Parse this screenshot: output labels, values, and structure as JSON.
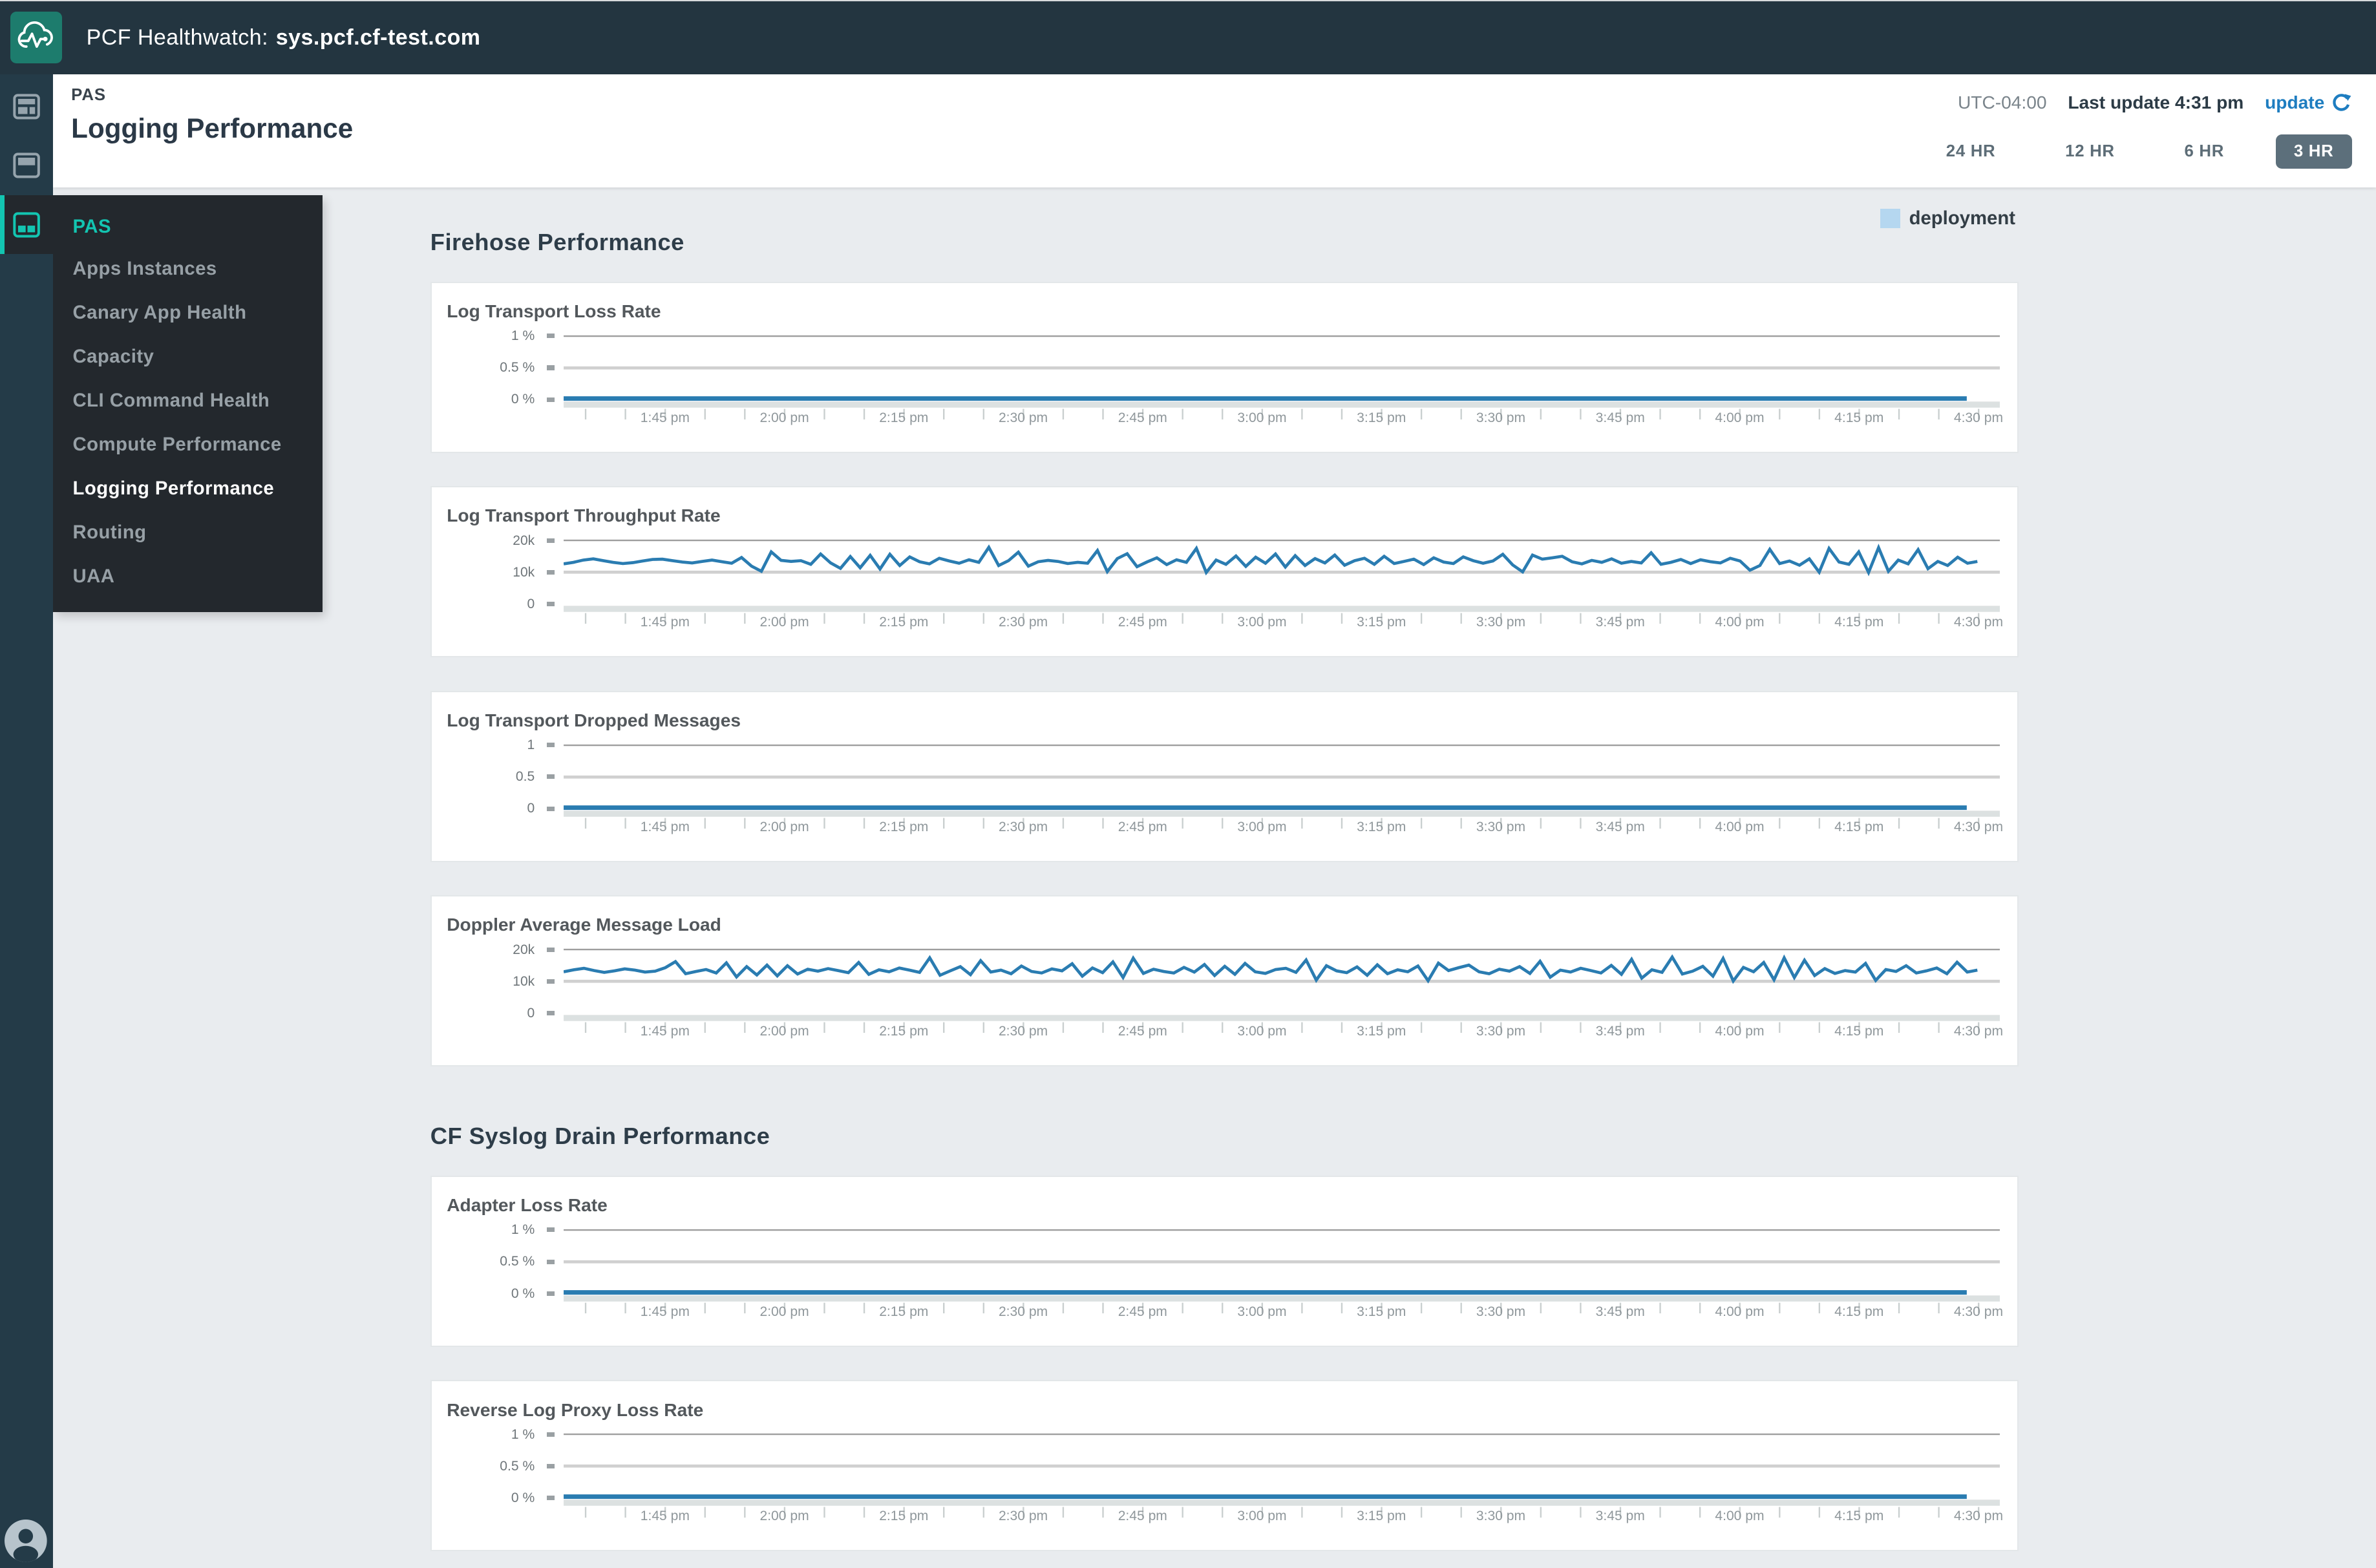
{
  "header": {
    "app_title_prefix": "PCF Healthwatch:",
    "app_domain": "sys.pcf.cf-test.com"
  },
  "subheader": {
    "breadcrumb": "PAS",
    "title": "Logging Performance",
    "timezone": "UTC-04:00",
    "last_update": "Last update 4:31 pm",
    "update_label": "update",
    "ranges": [
      {
        "label": "24 HR",
        "active": false
      },
      {
        "label": "12 HR",
        "active": false
      },
      {
        "label": "6 HR",
        "active": false
      },
      {
        "label": "3 HR",
        "active": true
      }
    ]
  },
  "rail": {
    "icons": [
      {
        "name": "dashboard-overview-icon",
        "active": false
      },
      {
        "name": "panel-top-icon",
        "active": false
      },
      {
        "name": "panel-split-icon",
        "active": true
      }
    ]
  },
  "menu": {
    "items": [
      {
        "label": "PAS",
        "style": "section"
      },
      {
        "label": "Apps Instances",
        "style": "normal"
      },
      {
        "label": "Canary App Health",
        "style": "normal"
      },
      {
        "label": "Capacity",
        "style": "normal"
      },
      {
        "label": "CLI Command Health",
        "style": "normal"
      },
      {
        "label": "Compute Performance",
        "style": "normal"
      },
      {
        "label": "Logging Performance",
        "style": "active"
      },
      {
        "label": "Routing",
        "style": "normal"
      },
      {
        "label": "UAA",
        "style": "normal"
      }
    ]
  },
  "legend": {
    "label": "deployment",
    "color": "#b5d7f0"
  },
  "sections": [
    {
      "heading": "Firehose Performance"
    },
    {
      "heading": "CF Syslog Drain Performance"
    }
  ],
  "colors": {
    "line_blue": "#2a7cb1",
    "grid_top": "#9e9e9e",
    "grid_mid": "#d0d0d0",
    "baseline_band": "#dce1e1",
    "minor_tick": "#c9cfcf",
    "teal_accent": "#13c5b1",
    "header_bg": "#233540",
    "rail_bg": "#243b48",
    "menu_bg": "#23282d",
    "logo_bg": "#1d7c6d",
    "active_range_bg": "#5c6f7b",
    "update_blue": "#1e7dc0"
  },
  "chart_data": [
    {
      "type": "line",
      "title": "Log Transport Loss Rate",
      "section": "Firehose Performance",
      "legend": "deployment",
      "grid": true,
      "ylim": [
        0,
        1.25
      ],
      "y_unit": "%",
      "y_ticks": [
        {
          "label": "1 %",
          "value": 1
        },
        {
          "label": "0.5 %",
          "value": 0.5
        },
        {
          "label": "0 %",
          "value": 0
        }
      ],
      "x_labels": [
        "1:45 pm",
        "2:00 pm",
        "2:15 pm",
        "2:30 pm",
        "2:45 pm",
        "3:00 pm",
        "3:15 pm",
        "3:30 pm",
        "3:45 pm",
        "4:00 pm",
        "4:15 pm",
        "4:30 pm"
      ],
      "series": [
        {
          "name": "deployment",
          "constant": true,
          "values": [
            0,
            0
          ]
        }
      ]
    },
    {
      "type": "line",
      "title": "Log Transport Throughput Rate",
      "section": "Firehose Performance",
      "legend": "deployment",
      "grid": true,
      "ylim": [
        0,
        22000
      ],
      "y_unit": "k",
      "y_ticks": [
        {
          "label": "20k",
          "value": 20
        },
        {
          "label": "10k",
          "value": 10
        },
        {
          "label": "0",
          "value": 0
        }
      ],
      "x_labels": [
        "1:45 pm",
        "2:00 pm",
        "2:15 pm",
        "2:30 pm",
        "2:45 pm",
        "3:00 pm",
        "3:15 pm",
        "3:30 pm",
        "3:45 pm",
        "4:00 pm",
        "4:15 pm",
        "4:30 pm"
      ],
      "series": [
        {
          "name": "deployment",
          "constant": false,
          "values": [
            12.6,
            13.1,
            13.8,
            14.2,
            13.6,
            13.1,
            12.7,
            13.0,
            13.5,
            14.0,
            14.1,
            13.6,
            13.2,
            12.9,
            13.4,
            13.8,
            13.3,
            12.8,
            14.6,
            11.9,
            10.3,
            16.4,
            13.7,
            13.4,
            13.6,
            12.5,
            15.7,
            12.9,
            11.2,
            14.9,
            11.4,
            15.3,
            11.0,
            15.6,
            12.1,
            14.8,
            13.3,
            12.6,
            14.4,
            13.5,
            12.8,
            13.9,
            13.1,
            17.8,
            12.1,
            13.6,
            16.3,
            11.9,
            13.3,
            13.7,
            13.4,
            12.7,
            13.1,
            12.8,
            16.8,
            10.2,
            14.3,
            15.8,
            11.7,
            13.2,
            14.5,
            12.4,
            13.9,
            13.1,
            17.5,
            9.9,
            13.8,
            12.5,
            15.1,
            11.8,
            14.7,
            12.8,
            15.7,
            11.6,
            15.2,
            12.1,
            14.3,
            12.9,
            15.4,
            12.2,
            13.6,
            14.4,
            12.5,
            15.0,
            12.7,
            13.4,
            14.1,
            12.4,
            14.5,
            13.2,
            12.7,
            14.8,
            13.6,
            12.8,
            13.5,
            15.6,
            12.3,
            10.1,
            15.4,
            14.1,
            14.5,
            15.0,
            13.3,
            12.6,
            13.7,
            13.1,
            14.2,
            12.8,
            13.4,
            12.9,
            16.1,
            12.5,
            13.1,
            14.0,
            12.7,
            13.9,
            13.3,
            12.9,
            14.4,
            13.5,
            10.6,
            12.1,
            17.2,
            12.7,
            13.5,
            12.2,
            14.2,
            10.0,
            17.5,
            13.2,
            12.5,
            16.4,
            9.9,
            17.7,
            10.3,
            13.8,
            12.6,
            17.1,
            11.1,
            13.4,
            12.1,
            14.7,
            12.8,
            13.4
          ]
        }
      ]
    },
    {
      "type": "line",
      "title": "Log Transport Dropped Messages",
      "section": "Firehose Performance",
      "legend": "deployment",
      "grid": true,
      "ylim": [
        0,
        1.25
      ],
      "y_unit": "",
      "y_ticks": [
        {
          "label": "1",
          "value": 1
        },
        {
          "label": "0.5",
          "value": 0.5
        },
        {
          "label": "0",
          "value": 0
        }
      ],
      "x_labels": [
        "1:45 pm",
        "2:00 pm",
        "2:15 pm",
        "2:30 pm",
        "2:45 pm",
        "3:00 pm",
        "3:15 pm",
        "3:30 pm",
        "3:45 pm",
        "4:00 pm",
        "4:15 pm",
        "4:30 pm"
      ],
      "series": [
        {
          "name": "deployment",
          "constant": true,
          "values": [
            0,
            0
          ]
        }
      ]
    },
    {
      "type": "line",
      "title": "Doppler Average Message Load",
      "section": "Firehose Performance",
      "legend": "deployment",
      "grid": true,
      "ylim": [
        0,
        22000
      ],
      "y_unit": "k",
      "y_ticks": [
        {
          "label": "20k",
          "value": 20
        },
        {
          "label": "10k",
          "value": 10
        },
        {
          "label": "0",
          "value": 0
        }
      ],
      "x_labels": [
        "1:45 pm",
        "2:00 pm",
        "2:15 pm",
        "2:30 pm",
        "2:45 pm",
        "3:00 pm",
        "3:15 pm",
        "3:30 pm",
        "3:45 pm",
        "4:00 pm",
        "4:15 pm",
        "4:30 pm"
      ],
      "series": [
        {
          "name": "deployment",
          "constant": false,
          "values": [
            13.0,
            13.6,
            14.1,
            13.4,
            12.8,
            13.3,
            13.9,
            13.5,
            12.9,
            13.2,
            14.3,
            16.2,
            12.4,
            13.1,
            13.7,
            12.6,
            15.8,
            11.4,
            14.6,
            12.0,
            15.1,
            11.7,
            14.9,
            12.3,
            13.8,
            13.2,
            14.0,
            13.4,
            12.7,
            15.9,
            12.2,
            13.6,
            13.0,
            14.2,
            13.5,
            12.8,
            17.4,
            11.9,
            13.3,
            14.6,
            12.1,
            16.5,
            12.9,
            13.5,
            12.4,
            14.8,
            13.1,
            12.6,
            13.9,
            13.3,
            15.5,
            11.6,
            14.2,
            12.7,
            16.1,
            11.2,
            17.3,
            12.5,
            13.8,
            13.1,
            12.6,
            14.4,
            12.9,
            15.3,
            11.8,
            14.7,
            12.2,
            15.6,
            13.0,
            12.5,
            13.7,
            14.1,
            12.8,
            16.7,
            10.4,
            14.9,
            13.3,
            12.7,
            14.5,
            11.9,
            15.2,
            12.4,
            13.6,
            13.0,
            14.8,
            10.2,
            15.7,
            13.4,
            14.3,
            15.1,
            13.0,
            12.4,
            13.8,
            13.2,
            14.6,
            12.5,
            16.3,
            11.3,
            13.5,
            12.9,
            14.1,
            13.4,
            12.6,
            15.0,
            12.2,
            16.9,
            11.0,
            13.6,
            12.8,
            17.6,
            12.3,
            13.2,
            14.7,
            11.6,
            17.2,
            10.1,
            14.4,
            13.0,
            15.9,
            10.5,
            17.4,
            11.2,
            16.6,
            11.8,
            14.0,
            12.5,
            13.4,
            12.9,
            15.6,
            10.3,
            13.7,
            13.1,
            14.9,
            12.6,
            13.3,
            14.2,
            12.4,
            16.0,
            12.9,
            13.5
          ]
        }
      ]
    },
    {
      "type": "line",
      "title": "Adapter Loss Rate",
      "section": "CF Syslog Drain Performance",
      "legend": "deployment",
      "grid": true,
      "ylim": [
        0,
        1.25
      ],
      "y_unit": "%",
      "y_ticks": [
        {
          "label": "1 %",
          "value": 1
        },
        {
          "label": "0.5 %",
          "value": 0.5
        },
        {
          "label": "0 %",
          "value": 0
        }
      ],
      "x_labels": [
        "1:45 pm",
        "2:00 pm",
        "2:15 pm",
        "2:30 pm",
        "2:45 pm",
        "3:00 pm",
        "3:15 pm",
        "3:30 pm",
        "3:45 pm",
        "4:00 pm",
        "4:15 pm",
        "4:30 pm"
      ],
      "series": [
        {
          "name": "deployment",
          "constant": true,
          "values": [
            0,
            0
          ]
        }
      ]
    },
    {
      "type": "line",
      "title": "Reverse Log Proxy Loss Rate",
      "section": "CF Syslog Drain Performance",
      "legend": "deployment",
      "grid": true,
      "ylim": [
        0,
        1.25
      ],
      "y_unit": "%",
      "y_ticks": [
        {
          "label": "1 %",
          "value": 1
        },
        {
          "label": "0.5 %",
          "value": 0.5
        },
        {
          "label": "0 %",
          "value": 0
        }
      ],
      "x_labels": [
        "1:45 pm",
        "2:00 pm",
        "2:15 pm",
        "2:30 pm",
        "2:45 pm",
        "3:00 pm",
        "3:15 pm",
        "3:30 pm",
        "3:45 pm",
        "4:00 pm",
        "4:15 pm",
        "4:30 pm"
      ],
      "series": [
        {
          "name": "deployment",
          "constant": true,
          "values": [
            0,
            0
          ]
        }
      ]
    }
  ]
}
